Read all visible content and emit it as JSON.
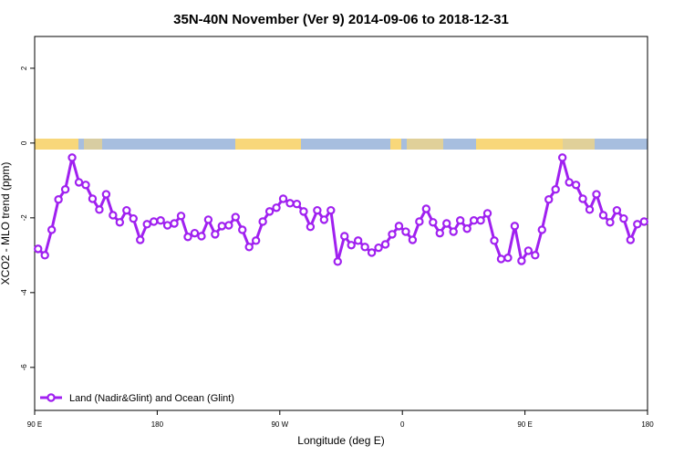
{
  "chart_data": {
    "type": "line",
    "title": "35N-40N November (Ver 9)   2014-09-06 to 2018-12-31",
    "x_label": "Longitude (deg E)",
    "y_label": "XCO2 - MLO trend (ppm)",
    "xlim": [
      90,
      540
    ],
    "ylim": [
      -7.15,
      2.85
    ],
    "xticks": [
      {
        "value": 90,
        "label": "90 E"
      },
      {
        "value": 180,
        "label": "180"
      },
      {
        "value": 270,
        "label": "90 W"
      },
      {
        "value": 360,
        "label": "0"
      },
      {
        "value": 450,
        "label": "90 E"
      },
      {
        "value": 540,
        "label": "180"
      }
    ],
    "yticks": [
      -6,
      -4,
      -2,
      0,
      2
    ],
    "legend_position": "bottom-left",
    "x": [
      92.5,
      97.5,
      102.5,
      107.5,
      112.5,
      117.5,
      122.5,
      127.5,
      132.5,
      137.5,
      142.5,
      147.5,
      152.5,
      157.5,
      162.5,
      167.5,
      172.5,
      177.5,
      182.5,
      187.5,
      192.5,
      197.5,
      202.5,
      207.5,
      212.5,
      217.5,
      222.5,
      227.5,
      232.5,
      237.5,
      242.5,
      247.5,
      252.5,
      257.5,
      262.5,
      267.5,
      272.5,
      277.5,
      282.5,
      287.5,
      292.5,
      297.5,
      302.5,
      307.5,
      312.5,
      317.5,
      322.5,
      327.5,
      332.5,
      337.5,
      342.5,
      347.5,
      352.5,
      357.5,
      362.5,
      367.5,
      372.5,
      377.5,
      382.5,
      387.5,
      392.5,
      397.5,
      402.5,
      407.5,
      412.5,
      417.5,
      422.5,
      427.5,
      432.5,
      437.5,
      442.5,
      447.5,
      452.5,
      457.5,
      462.5,
      467.5,
      472.5,
      477.5,
      482.5,
      487.5,
      492.5,
      497.5,
      502.5,
      507.5,
      512.5,
      517.5,
      522.5,
      527.5,
      532.5,
      537.5
    ],
    "series": [
      {
        "name": "Land (Nadir&Glint) and Ocean (Glint)",
        "color": "#a020f0",
        "values": [
          -2.83,
          -3.0,
          -2.32,
          -1.51,
          -1.24,
          -0.39,
          -1.05,
          -1.12,
          -1.49,
          -1.78,
          -1.37,
          -1.93,
          -2.12,
          -1.8,
          -2.02,
          -2.59,
          -2.17,
          -2.1,
          -2.07,
          -2.2,
          -2.15,
          -1.95,
          -2.51,
          -2.41,
          -2.49,
          -2.05,
          -2.44,
          -2.22,
          -2.2,
          -1.98,
          -2.32,
          -2.78,
          -2.61,
          -2.1,
          -1.83,
          -1.73,
          -1.49,
          -1.61,
          -1.63,
          -1.83,
          -2.24,
          -1.8,
          -2.05,
          -1.8,
          -3.17,
          -2.49,
          -2.73,
          -2.61,
          -2.78,
          -2.93,
          -2.8,
          -2.71,
          -2.44,
          -2.22,
          -2.37,
          -2.59,
          -2.1,
          -1.76,
          -2.12,
          -2.41,
          -2.15,
          -2.37,
          -2.07,
          -2.29,
          -2.07,
          -2.07,
          -1.88,
          -2.61,
          -3.1,
          -3.07,
          -2.22,
          -3.15,
          -2.88,
          -3.0,
          -2.32,
          -1.51,
          -1.24,
          -0.39,
          -1.05,
          -1.12,
          -1.49,
          -1.78,
          -1.37,
          -1.93,
          -2.12,
          -1.8,
          -2.02,
          -2.59,
          -2.17,
          -2.1
        ]
      }
    ]
  }
}
